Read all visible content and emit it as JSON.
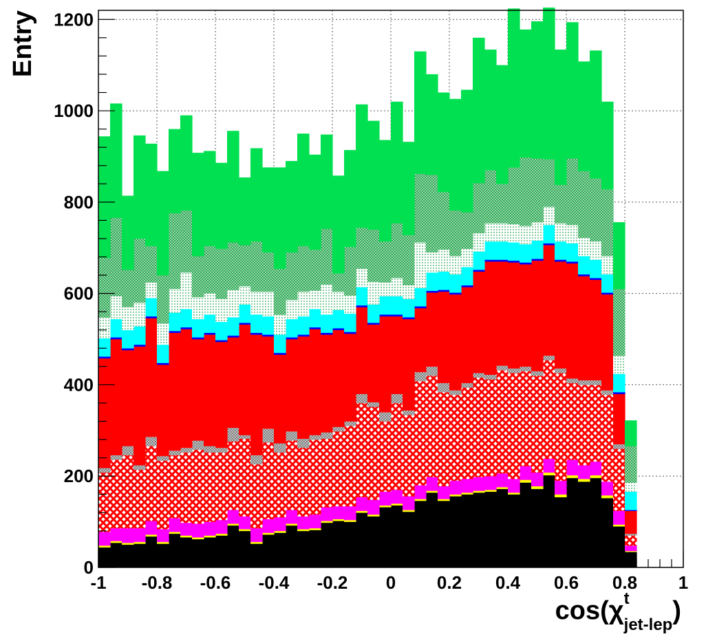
{
  "chart_data": {
    "type": "bar",
    "stacked": true,
    "xlabel": "cos(χ",
    "xlabel_sup": "t",
    "xlabel_sub": "jet-lep",
    "xlabel_close": ")",
    "ylabel": "Entry",
    "xlim": [
      -1,
      1
    ],
    "ylim": [
      0,
      1220
    ],
    "grid": true,
    "xticks": [
      -1,
      -0.8,
      -0.6,
      -0.4,
      -0.2,
      0,
      0.2,
      0.4,
      0.6,
      0.8,
      1
    ],
    "xtick_labels": [
      "-1",
      "-0.8",
      "-0.6",
      "-0.4",
      "-0.2",
      "0",
      "0.2",
      "0.4",
      "0.6",
      "0.8",
      "1"
    ],
    "yticks": [
      0,
      200,
      400,
      600,
      800,
      1000,
      1200
    ],
    "ytick_labels": [
      "0",
      "200",
      "400",
      "600",
      "800",
      "1000",
      "1200"
    ],
    "bin_edges_start": -1,
    "bin_width": 0.04,
    "series": [
      {
        "color": "#000000",
        "pattern": "solid",
        "values": [
          44,
          54,
          50,
          52,
          68,
          52,
          74,
          66,
          62,
          66,
          70,
          92,
          80,
          52,
          72,
          76,
          92,
          80,
          82,
          98,
          102,
          100,
          120,
          112,
          132,
          136,
          122,
          146,
          164,
          146,
          156,
          160,
          164,
          166,
          172,
          160,
          186,
          172,
          202,
          154,
          196,
          188,
          196,
          152,
          90,
          34
        ]
      },
      {
        "color": "#ffff00",
        "pattern": "solid",
        "values": [
          4,
          4,
          4,
          4,
          4,
          4,
          4,
          4,
          4,
          4,
          4,
          4,
          4,
          4,
          4,
          4,
          4,
          4,
          4,
          4,
          4,
          4,
          4,
          4,
          4,
          4,
          4,
          4,
          4,
          4,
          4,
          4,
          4,
          4,
          4,
          4,
          6,
          6,
          6,
          6,
          6,
          6,
          6,
          6,
          4,
          2
        ]
      },
      {
        "color": "#ff00ff",
        "pattern": "solid",
        "values": [
          30,
          28,
          32,
          30,
          30,
          28,
          30,
          28,
          30,
          30,
          30,
          30,
          28,
          30,
          30,
          30,
          30,
          28,
          30,
          30,
          28,
          30,
          30,
          32,
          30,
          30,
          30,
          30,
          30,
          28,
          30,
          30,
          30,
          30,
          30,
          30,
          30,
          30,
          30,
          30,
          34,
          30,
          30,
          30,
          30,
          12
        ]
      },
      {
        "color": "#ff0000",
        "pattern": "cross-hatch",
        "values": [
          130,
          150,
          160,
          128,
          164,
          150,
          138,
          154,
          162,
          152,
          148,
          150,
          170,
          140,
          168,
          142,
          152,
          150,
          164,
          150,
          164,
          176,
          206,
          204,
          154,
          190,
          178,
          228,
          222,
          206,
          188,
          200,
          218,
          212,
          226,
          232,
          208,
          212,
          216,
          236,
          168,
          176,
          168,
          190,
          136,
          22
        ]
      },
      {
        "color": "#d0d0d0",
        "pattern": "fine-hatch",
        "values": [
          10,
          10,
          20,
          10,
          20,
          10,
          10,
          10,
          20,
          14,
          10,
          30,
          8,
          20,
          30,
          20,
          20,
          20,
          10,
          14,
          10,
          10,
          20,
          10,
          20,
          20,
          10,
          20,
          20,
          20,
          10,
          10,
          10,
          10,
          10,
          10,
          10,
          10,
          10,
          10,
          10,
          10,
          10,
          10,
          10,
          4
        ]
      },
      {
        "color": "#ff0000",
        "pattern": "solid",
        "values": [
          240,
          254,
          210,
          260,
          260,
          200,
          258,
          260,
          222,
          244,
          232,
          198,
          242,
          264,
          202,
          194,
          202,
          224,
          232,
          214,
          212,
          192,
          190,
          170,
          210,
          170,
          200,
          140,
          162,
          200,
          210,
          210,
          222,
          248,
          228,
          232,
          224,
          242,
          242,
          234,
          252,
          228,
          220,
          210,
          110,
          50
        ]
      },
      {
        "color": "#0000ff",
        "pattern": "solid",
        "values": [
          4,
          4,
          4,
          4,
          4,
          4,
          4,
          4,
          4,
          4,
          4,
          4,
          4,
          4,
          4,
          4,
          4,
          4,
          4,
          4,
          4,
          4,
          4,
          4,
          4,
          4,
          4,
          4,
          4,
          4,
          4,
          4,
          4,
          4,
          4,
          4,
          4,
          4,
          4,
          4,
          4,
          4,
          4,
          4,
          4,
          2
        ]
      },
      {
        "color": "#00ffff",
        "pattern": "solid",
        "values": [
          40,
          40,
          40,
          40,
          40,
          40,
          40,
          40,
          40,
          40,
          40,
          40,
          40,
          40,
          40,
          40,
          40,
          40,
          40,
          40,
          40,
          40,
          40,
          40,
          40,
          40,
          40,
          40,
          40,
          40,
          40,
          40,
          40,
          40,
          40,
          40,
          40,
          40,
          40,
          40,
          40,
          40,
          40,
          40,
          40,
          40
        ]
      },
      {
        "color": "#00cc44",
        "pattern": "dotted",
        "values": [
          46,
          50,
          50,
          52,
          34,
          46,
          52,
          80,
          48,
          46,
          50,
          60,
          40,
          50,
          54,
          44,
          42,
          54,
          40,
          66,
          40,
          40,
          40,
          50,
          30,
          40,
          30,
          100,
          44,
          48,
          40,
          40,
          40,
          40,
          40,
          40,
          40,
          40,
          40,
          40,
          40,
          40,
          40,
          40,
          40,
          20
        ]
      },
      {
        "color": "#00cc44",
        "pattern": "fine-hatch",
        "values": [
          130,
          172,
          82,
          140,
          80,
          106,
          166,
          136,
          90,
          104,
          110,
          104,
          90,
          110,
          86,
          100,
          104,
          100,
          90,
          122,
          40,
          106,
          90,
          114,
          90,
          120,
          110,
          150,
          170,
          126,
          100,
          80,
          110,
          116,
          86,
          124,
          150,
          140,
          104,
          84,
          146,
          146,
          138,
          146,
          146,
          80
        ]
      },
      {
        "color": "#00e050",
        "pattern": "solid",
        "values": [
          266,
          250,
          162,
          226,
          224,
          228,
          184,
          208,
          226,
          208,
          188,
          244,
          148,
          204,
          186,
          222,
          200,
          246,
          208,
          206,
          214,
          212,
          270,
          238,
          222,
          266,
          204,
          268,
          220,
          218,
          244,
          268,
          318,
          264,
          260,
          348,
          280,
          300,
          332,
          296,
          298,
          240,
          280,
          192,
          146,
          56
        ]
      }
    ]
  }
}
